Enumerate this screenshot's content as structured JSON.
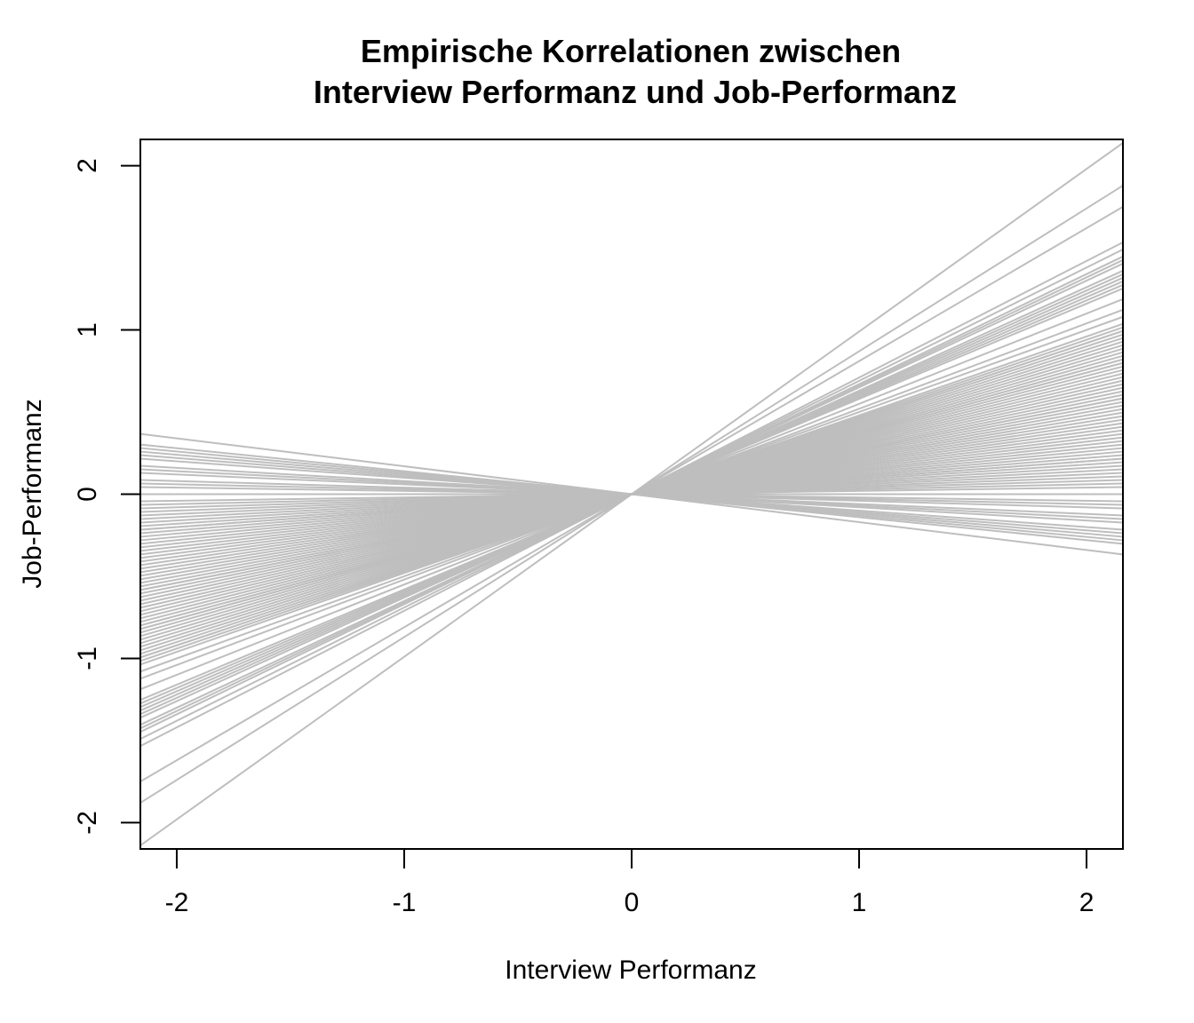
{
  "chart_data": {
    "type": "line",
    "title": [
      "Empirische Korrelationen zwischen",
      "Interview Performanz und Job-Performanz"
    ],
    "xlabel": "Interview Performanz",
    "ylabel": "Job-Performanz",
    "xlim": [
      -2.16,
      2.16
    ],
    "ylim": [
      -2.16,
      2.16
    ],
    "xticks": [
      -2,
      -1,
      0,
      1,
      2
    ],
    "yticks": [
      -2,
      -1,
      0,
      1,
      2
    ],
    "grid": false,
    "legend": "none",
    "line_color": "#bebebe",
    "description": "Each line passes through the origin (y = r * x) with slope equal to one empirical correlation r.",
    "slopes": [
      0.99,
      0.87,
      0.81,
      0.71,
      0.69,
      0.67,
      0.66,
      0.65,
      0.63,
      0.62,
      0.61,
      0.6,
      0.59,
      0.58,
      0.55,
      0.52,
      0.5,
      0.48,
      0.47,
      0.46,
      0.46,
      0.45,
      0.44,
      0.43,
      0.42,
      0.41,
      0.4,
      0.39,
      0.38,
      0.38,
      0.37,
      0.37,
      0.36,
      0.35,
      0.34,
      0.33,
      0.32,
      0.31,
      0.3,
      0.29,
      0.28,
      0.27,
      0.27,
      0.26,
      0.25,
      0.24,
      0.23,
      0.22,
      0.21,
      0.2,
      0.19,
      0.18,
      0.17,
      0.16,
      0.15,
      0.14,
      0.13,
      0.12,
      0.11,
      0.1,
      0.1,
      0.09,
      0.08,
      0.07,
      0.06,
      0.05,
      0.04,
      0.03,
      0.02,
      0.0,
      -0.02,
      -0.03,
      -0.04,
      -0.06,
      -0.07,
      -0.08,
      -0.1,
      -0.11,
      -0.12,
      -0.13,
      -0.14,
      -0.17
    ]
  }
}
